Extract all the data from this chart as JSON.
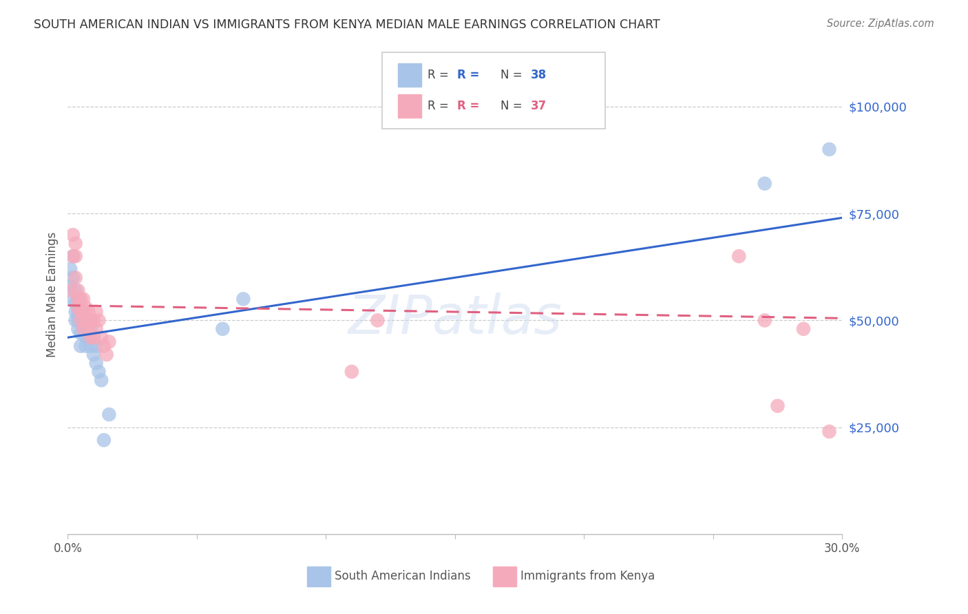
{
  "title": "SOUTH AMERICAN INDIAN VS IMMIGRANTS FROM KENYA MEDIAN MALE EARNINGS CORRELATION CHART",
  "source": "Source: ZipAtlas.com",
  "ylabel": "Median Male Earnings",
  "ytick_values": [
    25000,
    50000,
    75000,
    100000
  ],
  "ymin": 0,
  "ymax": 112000,
  "xmin": 0.0,
  "xmax": 0.3,
  "legend1_n": "38",
  "legend2_n": "37",
  "blue_color": "#A8C4E8",
  "pink_color": "#F5AABB",
  "blue_line_color": "#3366CC",
  "pink_line_color": "#E06080",
  "axis_label_color": "#3366CC",
  "title_color": "#333333",
  "watermark": "ZIPatlas",
  "blue_points_x": [
    0.001,
    0.001,
    0.002,
    0.002,
    0.002,
    0.003,
    0.003,
    0.003,
    0.003,
    0.004,
    0.004,
    0.004,
    0.004,
    0.005,
    0.005,
    0.005,
    0.005,
    0.006,
    0.006,
    0.007,
    0.007,
    0.007,
    0.008,
    0.008,
    0.009,
    0.009,
    0.01,
    0.01,
    0.011,
    0.011,
    0.012,
    0.013,
    0.014,
    0.016,
    0.06,
    0.068,
    0.27,
    0.295
  ],
  "blue_points_y": [
    62000,
    58000,
    65000,
    60000,
    55000,
    57000,
    54000,
    52000,
    50000,
    55000,
    52000,
    50000,
    48000,
    53000,
    50000,
    47000,
    44000,
    52000,
    48000,
    50000,
    46000,
    44000,
    50000,
    46000,
    48000,
    44000,
    46000,
    42000,
    44000,
    40000,
    38000,
    36000,
    22000,
    28000,
    48000,
    55000,
    82000,
    90000
  ],
  "pink_points_x": [
    0.001,
    0.002,
    0.002,
    0.003,
    0.003,
    0.003,
    0.004,
    0.004,
    0.004,
    0.005,
    0.005,
    0.005,
    0.006,
    0.006,
    0.006,
    0.007,
    0.007,
    0.008,
    0.008,
    0.009,
    0.009,
    0.01,
    0.01,
    0.011,
    0.011,
    0.012,
    0.013,
    0.014,
    0.015,
    0.016,
    0.11,
    0.12,
    0.26,
    0.27,
    0.275,
    0.285,
    0.295
  ],
  "pink_points_y": [
    57000,
    70000,
    65000,
    68000,
    65000,
    60000,
    57000,
    55000,
    53000,
    55000,
    52000,
    50000,
    55000,
    52000,
    48000,
    53000,
    50000,
    52000,
    48000,
    50000,
    46000,
    50000,
    46000,
    52000,
    48000,
    50000,
    46000,
    44000,
    42000,
    45000,
    38000,
    50000,
    65000,
    50000,
    30000,
    48000,
    24000
  ],
  "blue_trend_x": [
    0.0,
    0.3
  ],
  "blue_trend_y": [
    46000,
    74000
  ],
  "pink_trend_x": [
    0.0,
    0.3
  ],
  "pink_trend_y": [
    53500,
    50500
  ],
  "grid_color": "#CCCCCC",
  "bottom_legend_blue_label": "South American Indians",
  "bottom_legend_pink_label": "Immigrants from Kenya"
}
